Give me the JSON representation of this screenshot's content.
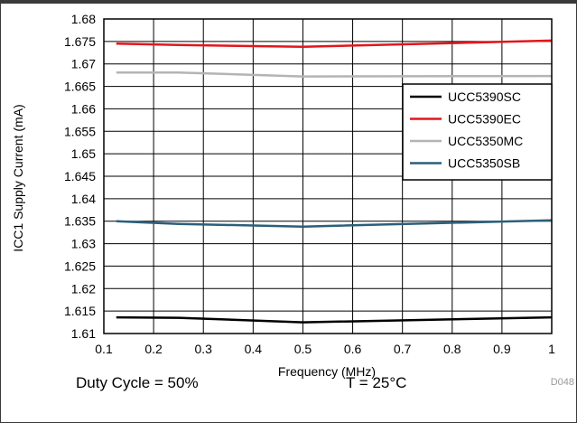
{
  "chart_data": {
    "type": "line",
    "title": "",
    "xlabel": "Frequency (MHz)",
    "ylabel": "ICC1 Supply Current (mA)",
    "xlim": [
      0.1,
      1
    ],
    "ylim": [
      1.61,
      1.68
    ],
    "xticks": [
      "0.1",
      "0.2",
      "0.3",
      "0.4",
      "0.5",
      "0.6",
      "0.7",
      "0.8",
      "0.9",
      "1"
    ],
    "yticks": [
      "1.61",
      "1.615",
      "1.62",
      "1.625",
      "1.63",
      "1.635",
      "1.64",
      "1.645",
      "1.65",
      "1.655",
      "1.66",
      "1.665",
      "1.67",
      "1.675",
      "1.68"
    ],
    "grid": true,
    "legend_position": "right",
    "x": [
      0.125,
      0.25,
      0.5,
      1.0
    ],
    "series": [
      {
        "name": "UCC5390SC",
        "color": "#000000",
        "values": [
          1.6136,
          1.6135,
          1.6125,
          1.6136
        ]
      },
      {
        "name": "UCC5390EC",
        "color": "#e3161b",
        "values": [
          1.6745,
          1.6742,
          1.6738,
          1.6752
        ]
      },
      {
        "name": "UCC5350MC",
        "color": "#b4b4b4",
        "values": [
          1.6681,
          1.6681,
          1.6672,
          1.6673
        ]
      },
      {
        "name": "UCC5350SB",
        "color": "#2b5f7a",
        "values": [
          1.635,
          1.6344,
          1.6338,
          1.6352
        ]
      }
    ]
  },
  "figure_code": "D048",
  "conditions": {
    "duty_cycle": "Duty Cycle = 50%",
    "temperature": "T = 25°C"
  }
}
